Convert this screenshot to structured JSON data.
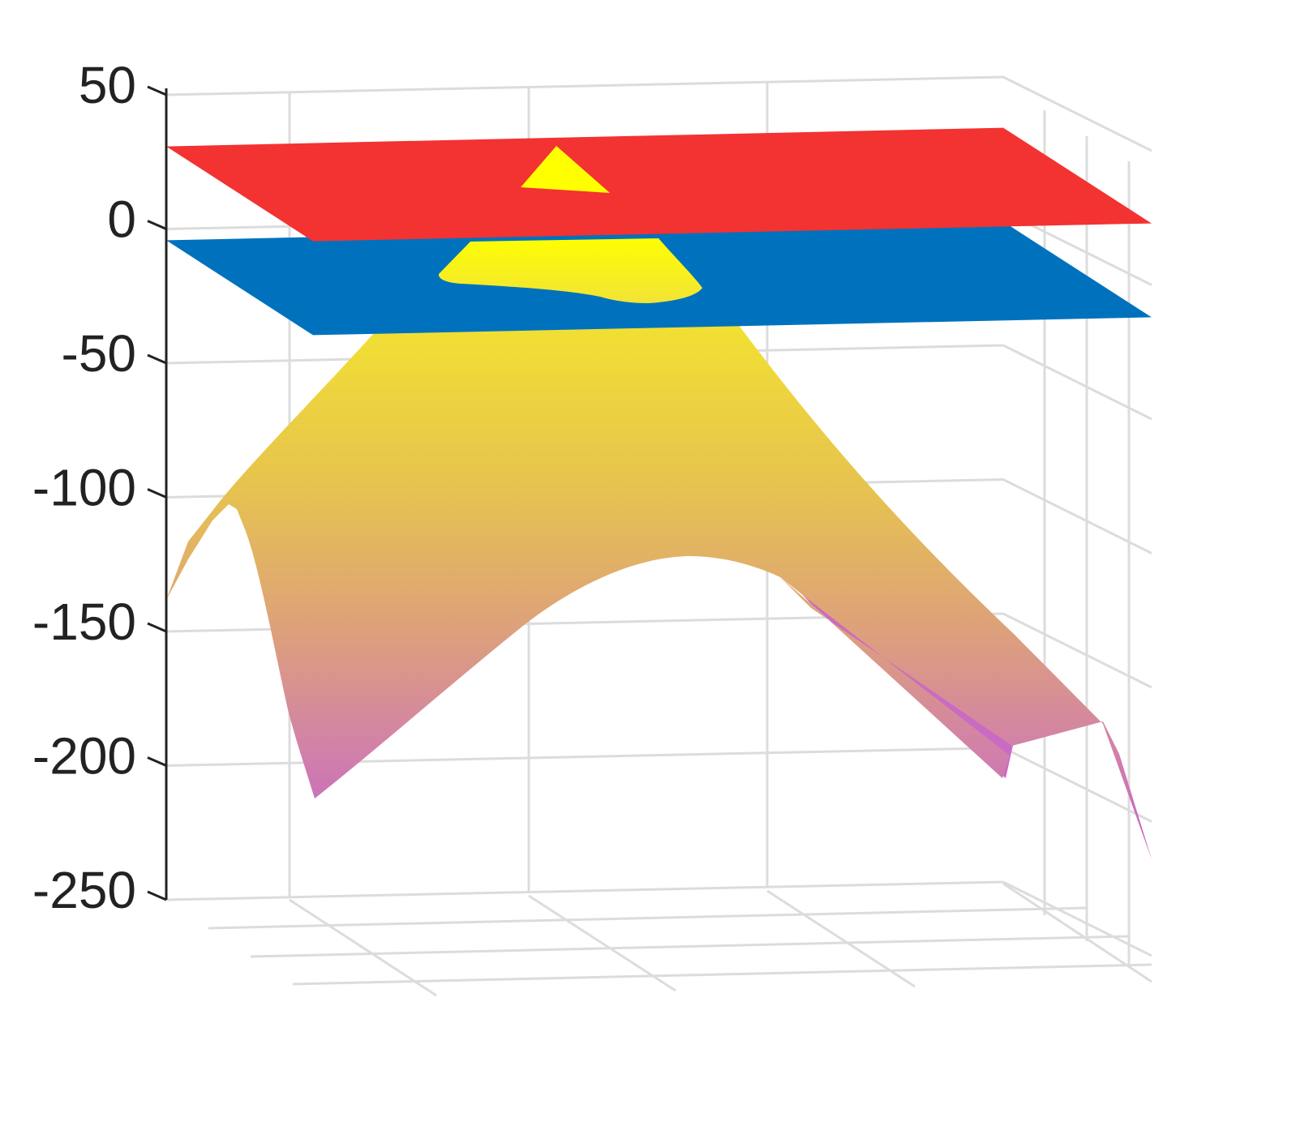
{
  "chart_data": {
    "type": "surface3d",
    "title": "",
    "xlabel": "",
    "ylabel": "",
    "zlabel": "",
    "zlim": [
      -250,
      50
    ],
    "z_ticks": [
      50,
      0,
      -50,
      -100,
      -150,
      -200,
      -250
    ],
    "z_tick_labels": [
      "50",
      "0",
      "-50",
      "-100",
      "-150",
      "-200",
      "-250"
    ],
    "grid": true,
    "legend": "none",
    "series": [
      {
        "kind": "plane",
        "z": 32,
        "color": "#f33232"
      },
      {
        "kind": "plane",
        "z": -3,
        "color": "#0072bd"
      },
      {
        "kind": "surface",
        "z_max": 30,
        "z_min": -235,
        "colormap": [
          "#ffff00",
          "#e6c94a",
          "#dba08a",
          "#c35cc9"
        ]
      }
    ]
  },
  "colors": {
    "grid": "#dcdcdc",
    "axis": "#222222",
    "background": "#ffffff"
  }
}
